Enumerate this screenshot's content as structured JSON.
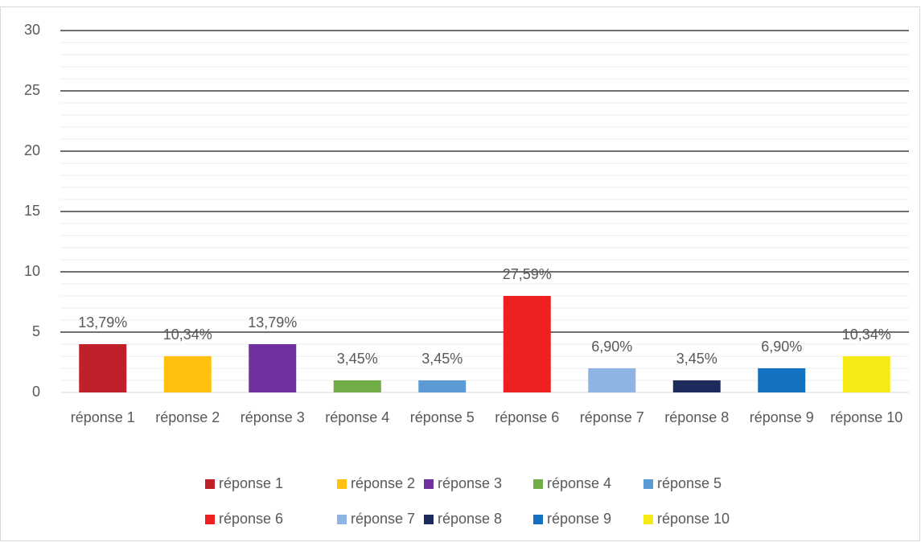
{
  "chart_data": {
    "type": "bar",
    "categories": [
      "réponse 1",
      "réponse 2",
      "réponse 3",
      "réponse 4",
      "réponse 5",
      "réponse 6",
      "réponse 7",
      "réponse 8",
      "réponse 9",
      "réponse 10"
    ],
    "values": [
      4,
      3,
      4,
      1,
      1,
      8,
      2,
      1,
      2,
      3
    ],
    "value_labels": [
      "13,79%",
      "10,34%",
      "13,79%",
      "3,45%",
      "3,45%",
      "27,59%",
      "6,90%",
      "3,45%",
      "6,90%",
      "10,34%"
    ],
    "colors": [
      "#c0202a",
      "#ffc010",
      "#7030a0",
      "#70ad47",
      "#5b9bd5",
      "#ee2020",
      "#8eb4e3",
      "#1f2a5c",
      "#1470c0",
      "#f5ea14"
    ],
    "ylim": [
      0,
      30
    ],
    "yticks": [
      0,
      5,
      10,
      15,
      20,
      25,
      30
    ],
    "grid": true,
    "legend": "bottom"
  }
}
